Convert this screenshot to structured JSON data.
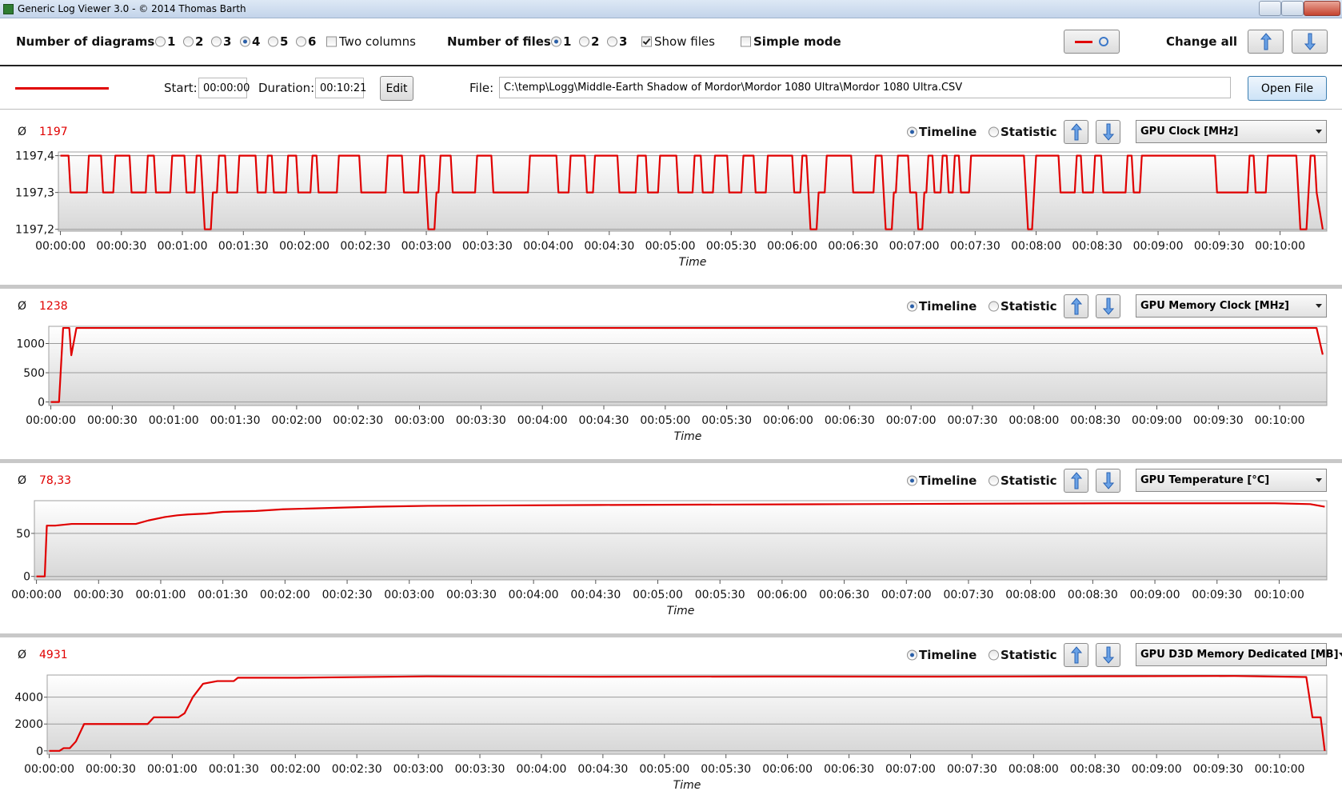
{
  "window": {
    "title": "Generic Log Viewer 3.0 - © 2014 Thomas Barth"
  },
  "toolbar": {
    "diagrams_label": "Number of diagrams",
    "diagrams_options": [
      {
        "label": "1",
        "checked": false
      },
      {
        "label": "2",
        "checked": false
      },
      {
        "label": "3",
        "checked": false
      },
      {
        "label": "4",
        "checked": true
      },
      {
        "label": "5",
        "checked": false
      },
      {
        "label": "6",
        "checked": false
      }
    ],
    "two_columns": {
      "label": "Two columns",
      "checked": false
    },
    "files_label": "Number of files",
    "files_options": [
      {
        "label": "1",
        "checked": true
      },
      {
        "label": "2",
        "checked": false
      },
      {
        "label": "3",
        "checked": false
      }
    ],
    "show_files": {
      "label": "Show files",
      "checked": true
    },
    "simple_mode": {
      "label": "Simple mode",
      "checked": false
    },
    "change_all": "Change all"
  },
  "file_row": {
    "color": "#e00000",
    "start_label": "Start:",
    "start": "00:00:00",
    "duration_label": "Duration:",
    "duration": "00:10:21",
    "edit": "Edit",
    "file_label": "File:",
    "file_path": "C:\\temp\\Logg\\Middle-Earth Shadow of Mordor\\Mordor 1080 Ultra\\Mordor 1080 Ultra.CSV",
    "open_file": "Open File"
  },
  "chart_data": [
    {
      "type": "line",
      "avg_symbol": "Ø",
      "avg_value": "1197",
      "modes": [
        {
          "label": "Timeline",
          "checked": true
        },
        {
          "label": "Statistic",
          "checked": false
        }
      ],
      "xlabel": "Time",
      "grid": true,
      "xlim": [
        -1,
        623
      ],
      "ylim": [
        1197.195,
        1197.41
      ],
      "yticks": [
        {
          "value": 1197.2,
          "label": "1197,2"
        },
        {
          "value": 1197.3,
          "label": "1197,3"
        },
        {
          "value": 1197.4,
          "label": "1197,4"
        }
      ],
      "xticks": [
        {
          "value": 0,
          "label": "00:00:00"
        },
        {
          "value": 30,
          "label": "00:00:30"
        },
        {
          "value": 60,
          "label": "00:01:00"
        },
        {
          "value": 90,
          "label": "00:01:30"
        },
        {
          "value": 120,
          "label": "00:02:00"
        },
        {
          "value": 150,
          "label": "00:02:30"
        },
        {
          "value": 180,
          "label": "00:03:00"
        },
        {
          "value": 210,
          "label": "00:03:30"
        },
        {
          "value": 240,
          "label": "00:04:00"
        },
        {
          "value": 270,
          "label": "00:04:30"
        },
        {
          "value": 300,
          "label": "00:05:00"
        },
        {
          "value": 330,
          "label": "00:05:30"
        },
        {
          "value": 360,
          "label": "00:06:00"
        },
        {
          "value": 390,
          "label": "00:06:30"
        },
        {
          "value": 420,
          "label": "00:07:00"
        },
        {
          "value": 450,
          "label": "00:07:30"
        },
        {
          "value": 480,
          "label": "00:08:00"
        },
        {
          "value": 510,
          "label": "00:08:30"
        },
        {
          "value": 540,
          "label": "00:09:00"
        },
        {
          "value": 570,
          "label": "00:09:30"
        },
        {
          "value": 600,
          "label": "00:10:00"
        }
      ],
      "x": [
        0,
        4,
        5,
        13,
        14,
        20,
        21,
        26,
        27,
        34,
        35,
        42,
        43,
        46,
        47,
        54,
        55,
        61,
        62,
        66,
        67,
        69,
        70,
        71,
        74,
        75,
        77,
        78,
        81,
        82,
        87,
        88,
        96,
        97,
        101,
        102,
        104,
        105,
        111,
        112,
        116,
        117,
        123,
        124,
        126,
        127,
        136,
        137,
        147,
        148,
        160,
        161,
        168,
        169,
        176,
        177,
        179,
        180,
        181,
        184,
        185,
        186,
        187,
        192,
        193,
        204,
        205,
        212,
        213,
        230,
        231,
        244,
        245,
        250,
        251,
        258,
        259,
        262,
        263,
        274,
        275,
        283,
        284,
        288,
        289,
        294,
        295,
        303,
        304,
        311,
        312,
        315,
        316,
        321,
        322,
        328,
        329,
        335,
        336,
        341,
        342,
        347,
        348,
        360,
        361,
        364,
        365,
        367,
        368,
        369,
        372,
        373,
        376,
        377,
        389,
        390,
        400,
        401,
        404,
        405,
        406,
        409,
        410,
        411,
        412,
        417,
        418,
        421,
        422,
        424,
        425,
        426,
        427,
        429,
        430,
        433,
        434,
        436,
        437,
        439,
        440,
        442,
        443,
        447,
        448,
        474,
        475,
        476,
        478,
        479,
        480,
        491,
        492,
        499,
        500,
        502,
        503,
        508,
        509,
        512,
        513,
        524,
        525,
        527,
        528,
        531,
        532,
        568,
        569,
        584,
        585,
        587,
        588,
        593,
        594,
        608,
        609,
        610,
        613,
        614,
        615,
        617,
        618,
        621
      ],
      "series": [
        {
          "name": "GPU Clock [MHz]",
          "color": "#e00000",
          "values": [
            1197.4,
            1197.4,
            1197.3,
            1197.3,
            1197.4,
            1197.4,
            1197.3,
            1197.3,
            1197.4,
            1197.4,
            1197.3,
            1197.3,
            1197.4,
            1197.4,
            1197.3,
            1197.3,
            1197.4,
            1197.4,
            1197.3,
            1197.3,
            1197.4,
            1197.4,
            1197.3,
            1197.2,
            1197.2,
            1197.3,
            1197.3,
            1197.4,
            1197.4,
            1197.3,
            1197.3,
            1197.4,
            1197.4,
            1197.3,
            1197.3,
            1197.4,
            1197.4,
            1197.3,
            1197.3,
            1197.4,
            1197.4,
            1197.3,
            1197.3,
            1197.4,
            1197.4,
            1197.3,
            1197.3,
            1197.4,
            1197.4,
            1197.3,
            1197.3,
            1197.4,
            1197.4,
            1197.3,
            1197.3,
            1197.4,
            1197.4,
            1197.3,
            1197.2,
            1197.2,
            1197.3,
            1197.3,
            1197.4,
            1197.4,
            1197.3,
            1197.3,
            1197.4,
            1197.4,
            1197.3,
            1197.3,
            1197.4,
            1197.4,
            1197.3,
            1197.3,
            1197.4,
            1197.4,
            1197.3,
            1197.3,
            1197.4,
            1197.4,
            1197.3,
            1197.3,
            1197.4,
            1197.4,
            1197.3,
            1197.3,
            1197.4,
            1197.4,
            1197.3,
            1197.3,
            1197.4,
            1197.4,
            1197.3,
            1197.3,
            1197.4,
            1197.4,
            1197.3,
            1197.3,
            1197.4,
            1197.4,
            1197.3,
            1197.3,
            1197.4,
            1197.4,
            1197.3,
            1197.3,
            1197.4,
            1197.4,
            1197.3,
            1197.2,
            1197.2,
            1197.3,
            1197.3,
            1197.4,
            1197.4,
            1197.3,
            1197.3,
            1197.4,
            1197.4,
            1197.3,
            1197.2,
            1197.2,
            1197.3,
            1197.3,
            1197.4,
            1197.4,
            1197.3,
            1197.3,
            1197.2,
            1197.2,
            1197.3,
            1197.3,
            1197.4,
            1197.4,
            1197.3,
            1197.3,
            1197.4,
            1197.4,
            1197.3,
            1197.3,
            1197.4,
            1197.4,
            1197.3,
            1197.3,
            1197.4,
            1197.4,
            1197.3,
            1197.2,
            1197.2,
            1197.3,
            1197.4,
            1197.4,
            1197.3,
            1197.3,
            1197.4,
            1197.4,
            1197.3,
            1197.3,
            1197.4,
            1197.4,
            1197.3,
            1197.3,
            1197.4,
            1197.4,
            1197.3,
            1197.3,
            1197.4,
            1197.4,
            1197.3,
            1197.3,
            1197.4,
            1197.4,
            1197.3,
            1197.3,
            1197.4,
            1197.4,
            1197.3,
            1197.2,
            1197.2,
            1197.3,
            1197.4,
            1197.4,
            1197.3,
            1197.2
          ]
        }
      ]
    },
    {
      "type": "line",
      "avg_symbol": "Ø",
      "avg_value": "1238",
      "modes": [
        {
          "label": "Timeline",
          "checked": true
        },
        {
          "label": "Statistic",
          "checked": false
        }
      ],
      "xlabel": "Time",
      "grid": true,
      "xlim": [
        -1,
        623
      ],
      "ylim": [
        -60,
        1294
      ],
      "yticks": [
        0,
        500,
        1000
      ],
      "xticks": [
        {
          "value": 0,
          "label": "00:00:00"
        },
        {
          "value": 30,
          "label": "00:00:30"
        },
        {
          "value": 60,
          "label": "00:01:00"
        },
        {
          "value": 90,
          "label": "00:01:30"
        },
        {
          "value": 120,
          "label": "00:02:00"
        },
        {
          "value": 150,
          "label": "00:02:30"
        },
        {
          "value": 180,
          "label": "00:03:00"
        },
        {
          "value": 210,
          "label": "00:03:30"
        },
        {
          "value": 240,
          "label": "00:04:00"
        },
        {
          "value": 270,
          "label": "00:04:30"
        },
        {
          "value": 300,
          "label": "00:05:00"
        },
        {
          "value": 330,
          "label": "00:05:30"
        },
        {
          "value": 360,
          "label": "00:06:00"
        },
        {
          "value": 390,
          "label": "00:06:30"
        },
        {
          "value": 420,
          "label": "00:07:00"
        },
        {
          "value": 450,
          "label": "00:07:30"
        },
        {
          "value": 480,
          "label": "00:08:00"
        },
        {
          "value": 510,
          "label": "00:08:30"
        },
        {
          "value": 540,
          "label": "00:09:00"
        },
        {
          "value": 570,
          "label": "00:09:30"
        },
        {
          "value": 600,
          "label": "00:10:00"
        }
      ],
      "x": [
        0,
        4,
        6,
        9,
        10,
        12.5,
        618,
        621
      ],
      "series": [
        {
          "name": "GPU Memory Clock [MHz]",
          "color": "#e00000",
          "values": [
            0,
            0,
            1266,
            1266,
            800,
            1266,
            1266,
            810
          ]
        }
      ]
    },
    {
      "type": "line",
      "avg_symbol": "Ø",
      "avg_value": "78,33",
      "modes": [
        {
          "label": "Timeline",
          "checked": true
        },
        {
          "label": "Statistic",
          "checked": false
        }
      ],
      "xlabel": "Time",
      "grid": true,
      "xlim": [
        -1,
        623
      ],
      "ylim": [
        -4,
        88
      ],
      "yticks": [
        0,
        50
      ],
      "xticks": [
        {
          "value": 0,
          "label": "00:00:00"
        },
        {
          "value": 30,
          "label": "00:00:30"
        },
        {
          "value": 60,
          "label": "00:01:00"
        },
        {
          "value": 90,
          "label": "00:01:30"
        },
        {
          "value": 120,
          "label": "00:02:00"
        },
        {
          "value": 150,
          "label": "00:02:30"
        },
        {
          "value": 180,
          "label": "00:03:00"
        },
        {
          "value": 210,
          "label": "00:03:30"
        },
        {
          "value": 240,
          "label": "00:04:00"
        },
        {
          "value": 270,
          "label": "00:04:30"
        },
        {
          "value": 300,
          "label": "00:05:00"
        },
        {
          "value": 330,
          "label": "00:05:30"
        },
        {
          "value": 360,
          "label": "00:06:00"
        },
        {
          "value": 390,
          "label": "00:06:30"
        },
        {
          "value": 420,
          "label": "00:07:00"
        },
        {
          "value": 450,
          "label": "00:07:30"
        },
        {
          "value": 480,
          "label": "00:08:00"
        },
        {
          "value": 510,
          "label": "00:08:30"
        },
        {
          "value": 540,
          "label": "00:09:00"
        },
        {
          "value": 570,
          "label": "00:09:30"
        },
        {
          "value": 600,
          "label": "00:10:00"
        }
      ],
      "x": [
        0,
        4,
        5,
        9,
        17,
        23,
        48,
        54,
        62,
        68,
        73,
        82,
        90,
        106,
        119,
        148,
        164,
        189,
        272,
        396,
        520,
        598,
        615,
        622
      ],
      "series": [
        {
          "name": "GPU Temperature [°C]",
          "color": "#e00000",
          "values": [
            0,
            0,
            59,
            59,
            61,
            61,
            61,
            65,
            69,
            71,
            72,
            73,
            75,
            76,
            78,
            80,
            81,
            82,
            83,
            84,
            85,
            85,
            84,
            81
          ]
        }
      ]
    },
    {
      "type": "line",
      "avg_symbol": "Ø",
      "avg_value": "4931",
      "modes": [
        {
          "label": "Timeline",
          "checked": true
        },
        {
          "label": "Statistic",
          "checked": false
        }
      ],
      "xlabel": "Time",
      "grid": true,
      "xlim": [
        -1,
        623
      ],
      "ylim": [
        -250,
        5650
      ],
      "yticks": [
        0,
        2000,
        4000
      ],
      "xticks": [
        {
          "value": 0,
          "label": "00:00:00"
        },
        {
          "value": 30,
          "label": "00:00:30"
        },
        {
          "value": 60,
          "label": "00:01:00"
        },
        {
          "value": 90,
          "label": "00:01:30"
        },
        {
          "value": 120,
          "label": "00:02:00"
        },
        {
          "value": 150,
          "label": "00:02:30"
        },
        {
          "value": 180,
          "label": "00:03:00"
        },
        {
          "value": 210,
          "label": "00:03:30"
        },
        {
          "value": 240,
          "label": "00:04:00"
        },
        {
          "value": 270,
          "label": "00:04:30"
        },
        {
          "value": 300,
          "label": "00:05:00"
        },
        {
          "value": 330,
          "label": "00:05:30"
        },
        {
          "value": 360,
          "label": "00:06:00"
        },
        {
          "value": 390,
          "label": "00:06:30"
        },
        {
          "value": 420,
          "label": "00:07:00"
        },
        {
          "value": 450,
          "label": "00:07:30"
        },
        {
          "value": 480,
          "label": "00:08:00"
        },
        {
          "value": 510,
          "label": "00:08:30"
        },
        {
          "value": 540,
          "label": "00:09:00"
        },
        {
          "value": 570,
          "label": "00:09:30"
        },
        {
          "value": 600,
          "label": "00:10:00"
        }
      ],
      "x": [
        0,
        5,
        7,
        10,
        13,
        17,
        28,
        48,
        51,
        63,
        66,
        70,
        75,
        82,
        90,
        92,
        121,
        184,
        268,
        351,
        435,
        518,
        578,
        613,
        616,
        620,
        622
      ],
      "series": [
        {
          "name": "GPU D3D Memory Dedicated [MB]",
          "color": "#e00000",
          "values": [
            0,
            0,
            200,
            200,
            700,
            2000,
            2000,
            2000,
            2500,
            2500,
            2800,
            4000,
            5000,
            5200,
            5200,
            5450,
            5450,
            5550,
            5520,
            5540,
            5530,
            5560,
            5580,
            5500,
            2500,
            2500,
            0
          ]
        }
      ]
    }
  ]
}
